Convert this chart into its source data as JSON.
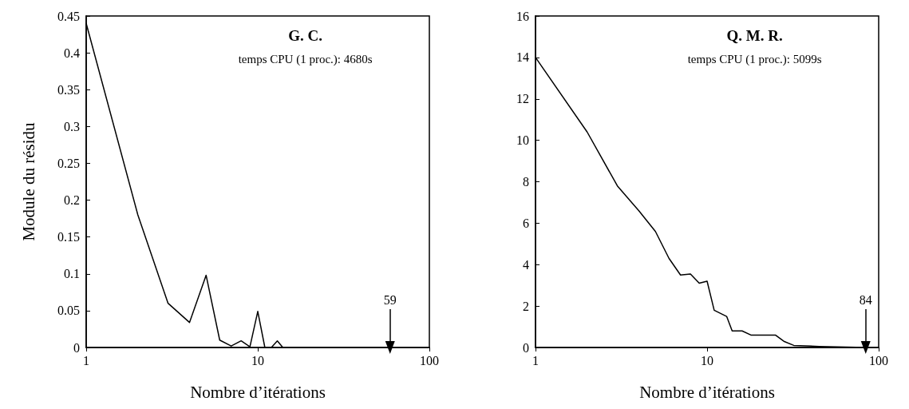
{
  "chart_data": [
    {
      "type": "line",
      "title": "G. C.",
      "subtitle": "temps CPU (1 proc.): 4680s",
      "xlabel": "Nombre d’itérations",
      "ylabel": "Module du résidu",
      "log": "x",
      "xlim": [
        1,
        100
      ],
      "xticks": [
        1,
        10,
        100
      ],
      "ylim": [
        0,
        0.45
      ],
      "yticks": [
        0,
        0.05,
        0.1,
        0.15,
        0.2,
        0.25,
        0.3,
        0.35,
        0.4,
        0.45
      ],
      "grid": false,
      "marker": "none",
      "line_style": "solid",
      "annotations": [
        {
          "text": "59",
          "x": 59,
          "y": 0
        }
      ],
      "series": [
        {
          "color": "#000000",
          "x": [
            1,
            2,
            3,
            4,
            5,
            6,
            7,
            8,
            9,
            10,
            11,
            12,
            13,
            14,
            59
          ],
          "values": [
            0.44,
            0.18,
            0.06,
            0.034,
            0.098,
            0.01,
            0.002,
            0.009,
            0.001,
            0.049,
            0,
            0,
            0.009,
            0,
            0
          ]
        }
      ]
    },
    {
      "type": "line",
      "title": "Q. M. R.",
      "subtitle": "temps CPU (1 proc.): 5099s",
      "xlabel": "Nombre d’itérations",
      "log": "x",
      "xlim": [
        1,
        100
      ],
      "xticks": [
        1,
        10,
        100
      ],
      "ylim": [
        0,
        16
      ],
      "yticks": [
        0,
        2,
        4,
        6,
        8,
        10,
        12,
        14,
        16
      ],
      "grid": false,
      "marker": "none",
      "line_style": "solid",
      "annotations": [
        {
          "text": "84",
          "x": 84,
          "y": 0
        }
      ],
      "series": [
        {
          "color": "#000000",
          "x": [
            1,
            2,
            3,
            4,
            5,
            6,
            7,
            8,
            9,
            10,
            11,
            13,
            14,
            16,
            18,
            25,
            28,
            32,
            45,
            84
          ],
          "values": [
            14,
            10.4,
            7.8,
            6.6,
            5.6,
            4.3,
            3.5,
            3.55,
            3.1,
            3.2,
            1.8,
            1.5,
            0.8,
            0.8,
            0.6,
            0.6,
            0.3,
            0.1,
            0.05,
            0
          ]
        }
      ]
    }
  ]
}
